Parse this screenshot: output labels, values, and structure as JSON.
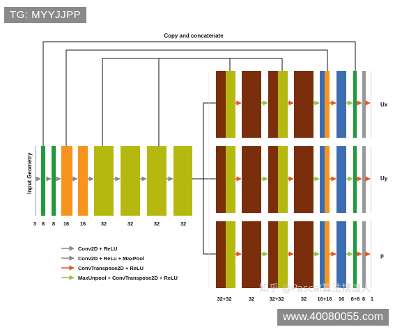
{
  "header_tag": "TG: MYYJJPP",
  "footer_tag": "www.40080055.com",
  "watermark": "知乎 @Pascal算法摆渡人",
  "title": "Copy and concatenate",
  "input_label": "Input Geometry",
  "colors": {
    "green": "#1f9a3c",
    "orange": "#f7941e",
    "olive": "#b5b90f",
    "brown": "#7b2e0b",
    "blue": "#3c6db1",
    "gray": "#999999",
    "arrow_gray": "#888888",
    "arrow_orange": "#e8541b",
    "arrow_lime": "#8dc63f"
  },
  "encoder_channels": [
    "3",
    "8",
    "8",
    "16",
    "16",
    "32",
    "32",
    "32",
    "32"
  ],
  "decoder_channels": [
    "32+32",
    "32",
    "32+32",
    "32",
    "16+16",
    "16",
    "8+8",
    "8",
    "1"
  ],
  "outputs": [
    "Ux",
    "Uy",
    "p"
  ],
  "legend": [
    {
      "label": "Conv2D + ReLU",
      "color": "#888888"
    },
    {
      "label": "Conv2D + ReLu + MaxPool",
      "color": "#888888"
    },
    {
      "label": "ConvTranspose2D + ReLU",
      "color": "#e8541b"
    },
    {
      "label": "MaxUnpool + ConvTranspose2D + ReLU",
      "color": "#8dc63f"
    }
  ]
}
